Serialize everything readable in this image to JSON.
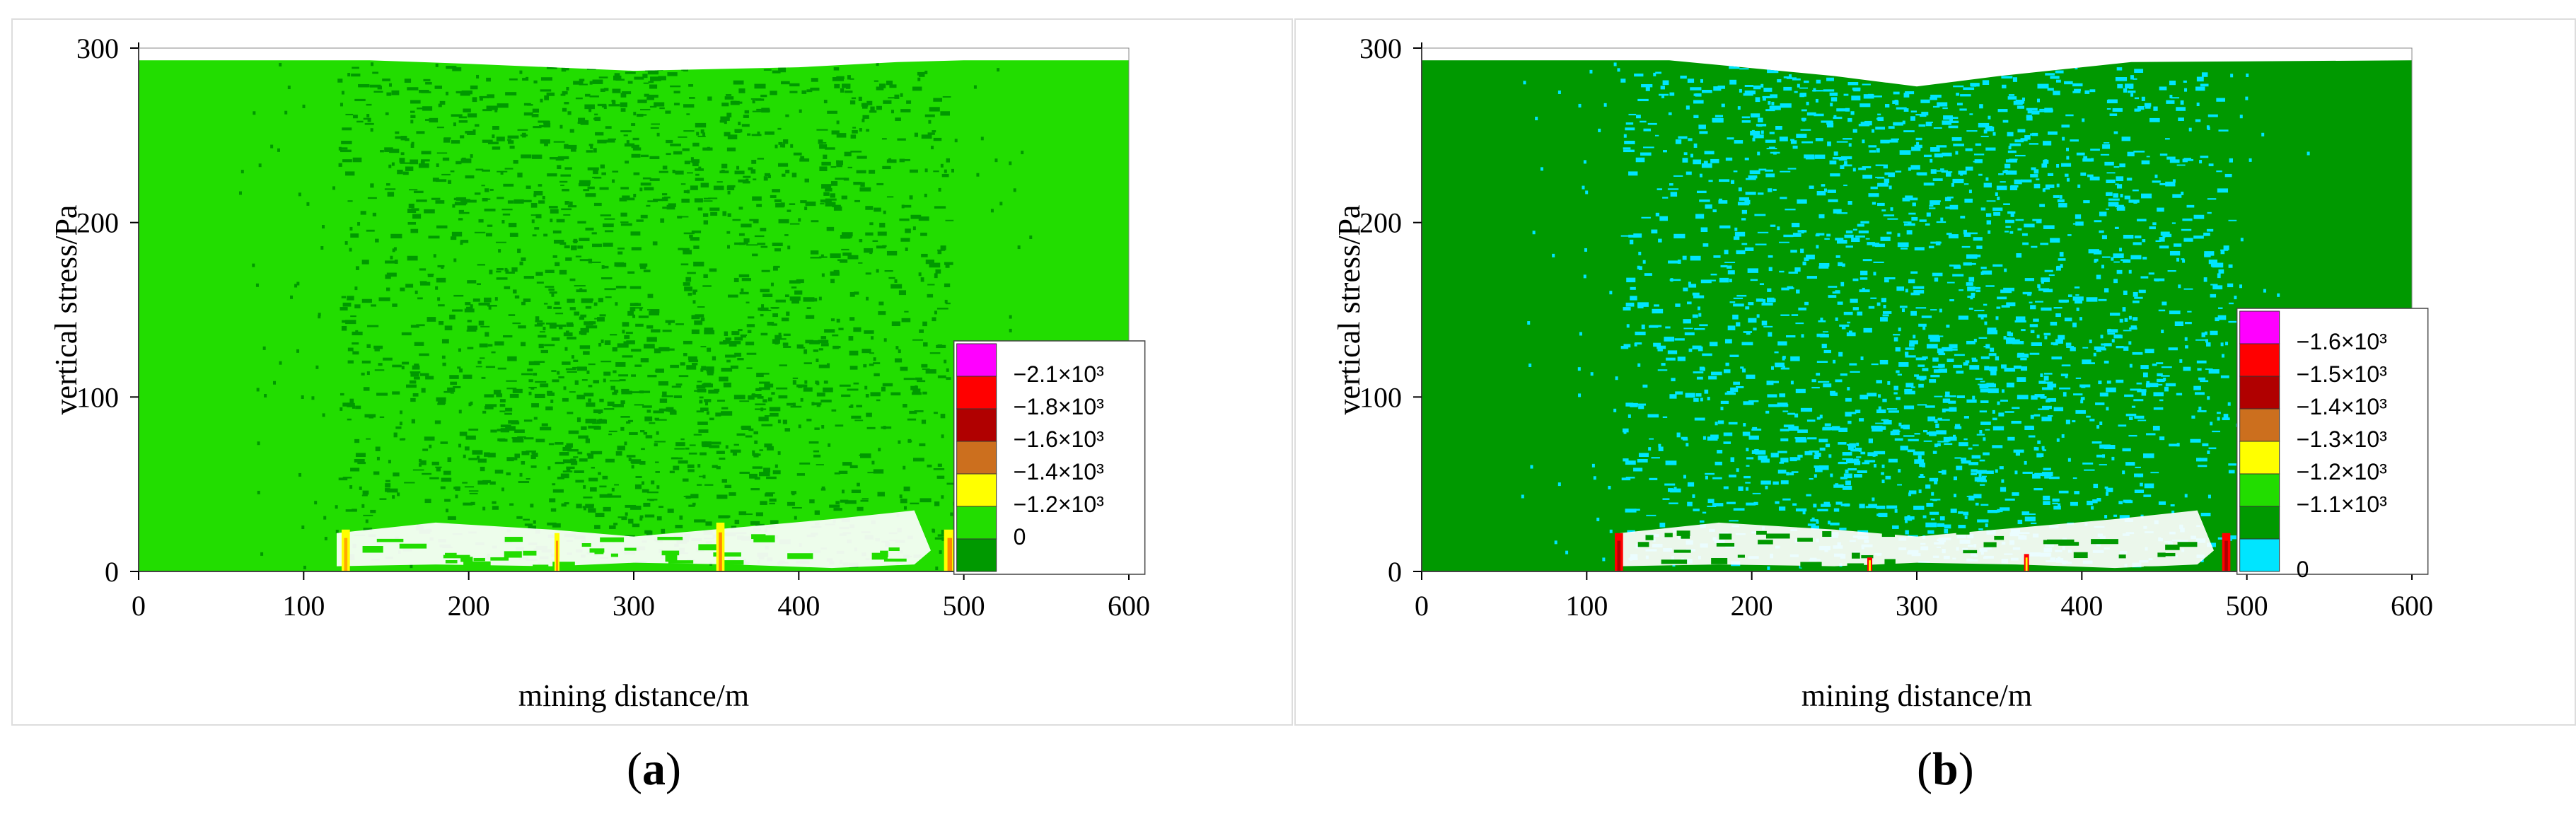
{
  "chart_data": [
    {
      "type": "heatmap",
      "panel_label": "a",
      "xlabel": "mining distance/m",
      "ylabel": "vertical stress/Pa",
      "xlim": [
        0,
        600
      ],
      "ylim": [
        0,
        300
      ],
      "x_ticks": [
        "0",
        "100",
        "200",
        "300",
        "400",
        "500",
        "600"
      ],
      "y_ticks": [
        "0",
        "100",
        "200",
        "300"
      ],
      "background_color": "#22dd00",
      "legend": [
        {
          "label": "−2.1×10³",
          "color": "#ff00ff"
        },
        {
          "label": "−1.8×10³",
          "color": "#ff0000"
        },
        {
          "label": "−1.6×10³",
          "color": "#b00000"
        },
        {
          "label": "−1.4×10³",
          "color": "#cc6f1e"
        },
        {
          "label": "−1.2×10³",
          "color": "#ffff00"
        },
        {
          "label": "0",
          "color": "#22dd00"
        },
        {
          "label": "",
          "color": "#009900"
        }
      ],
      "legend_position": "bottom-right",
      "top_surface": [
        [
          0,
          293
        ],
        [
          140,
          293
        ],
        [
          200,
          291
        ],
        [
          300,
          287
        ],
        [
          400,
          289
        ],
        [
          460,
          292
        ],
        [
          500,
          293
        ],
        [
          540,
          293
        ],
        [
          540,
          293
        ],
        [
          600,
          293
        ]
      ],
      "right_step": {
        "x": 540,
        "y": 130
      },
      "pillars": [
        {
          "x": 123,
          "w": 5,
          "h": 24,
          "colors": [
            "#ffff00",
            "#ffaa00"
          ]
        },
        {
          "x": 252,
          "w": 3,
          "h": 22,
          "colors": [
            "#ffff00",
            "#ff8800"
          ]
        },
        {
          "x": 350,
          "w": 5,
          "h": 28,
          "colors": [
            "#ffff00",
            "#ff8800"
          ]
        },
        {
          "x": 488,
          "w": 7,
          "h": 24,
          "colors": [
            "#ffff00",
            "#ff8800"
          ]
        }
      ],
      "fracture_color": "#009900",
      "goaf_color": "#ffffff"
    },
    {
      "type": "heatmap",
      "panel_label": "b",
      "xlabel": "mining distance/m",
      "ylabel": "vertical stress/Pa",
      "xlim": [
        0,
        600
      ],
      "ylim": [
        0,
        300
      ],
      "x_ticks": [
        "0",
        "100",
        "200",
        "300",
        "400",
        "500",
        "600"
      ],
      "y_ticks": [
        "0",
        "100",
        "200",
        "300"
      ],
      "background_color": "#009900",
      "legend": [
        {
          "label": "−1.6×10³",
          "color": "#ff00ff"
        },
        {
          "label": "−1.5×10³",
          "color": "#ff0000"
        },
        {
          "label": "−1.4×10³",
          "color": "#b00000"
        },
        {
          "label": "−1.3×10³",
          "color": "#cc6f1e"
        },
        {
          "label": "−1.2×10³",
          "color": "#ffff00"
        },
        {
          "label": "−1.1×10³",
          "color": "#22dd00"
        },
        {
          "label": "",
          "color": "#009900"
        },
        {
          "label": "0",
          "color": "#00e5ff"
        }
      ],
      "legend_position": "bottom-right",
      "top_surface": [
        [
          0,
          293
        ],
        [
          150,
          293
        ],
        [
          250,
          284
        ],
        [
          300,
          278
        ],
        [
          350,
          284
        ],
        [
          430,
          292
        ],
        [
          600,
          293
        ]
      ],
      "right_step": {
        "x": 600,
        "y": 150
      },
      "pillars": [
        {
          "x": 117,
          "w": 5,
          "h": 22,
          "colors": [
            "#ff0000",
            "#b00000"
          ]
        },
        {
          "x": 270,
          "w": 3,
          "h": 8,
          "colors": [
            "#ff0000",
            "#ffff00"
          ]
        },
        {
          "x": 365,
          "w": 3,
          "h": 10,
          "colors": [
            "#ff0000",
            "#ffff00"
          ]
        },
        {
          "x": 485,
          "w": 5,
          "h": 22,
          "colors": [
            "#ff0000",
            "#b00000"
          ]
        }
      ],
      "fracture_color": "#00e5ff",
      "goaf_color": "#ffffff"
    }
  ]
}
